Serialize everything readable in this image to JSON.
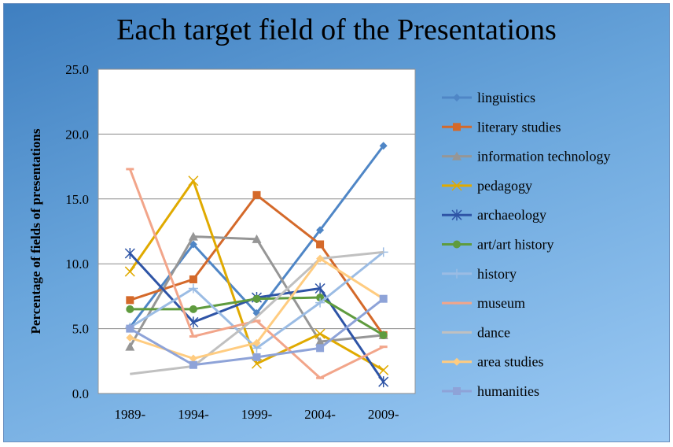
{
  "chart_data": {
    "type": "line",
    "title": "Each target field of the Presentations",
    "xlabel": "",
    "ylabel": "Percentage of fields of presentations",
    "categories": [
      "1989-",
      "1994-",
      "1999-",
      "2004-",
      "2009-"
    ],
    "ylim": [
      0,
      25
    ],
    "yticks": [
      "0.0",
      "5.0",
      "10.0",
      "15.0",
      "20.0",
      "25.0"
    ],
    "grid": true,
    "legend": "right",
    "series": [
      {
        "name": "linguistics",
        "color": "#4f86c6",
        "marker": "diamond",
        "values": [
          5.1,
          11.5,
          6.2,
          12.6,
          19.1
        ]
      },
      {
        "name": "literary studies",
        "color": "#d4692a",
        "marker": "square",
        "values": [
          7.2,
          8.8,
          15.3,
          11.5,
          4.5
        ]
      },
      {
        "name": "information technology",
        "color": "#969696",
        "marker": "triangle",
        "values": [
          3.6,
          12.1,
          11.9,
          4.0,
          4.5
        ]
      },
      {
        "name": "pedagogy",
        "color": "#e0aa00",
        "marker": "x",
        "values": [
          9.4,
          16.4,
          2.3,
          4.6,
          1.8
        ]
      },
      {
        "name": "archaeology",
        "color": "#2e54a6",
        "marker": "star",
        "values": [
          10.8,
          5.5,
          7.4,
          8.1,
          0.9
        ]
      },
      {
        "name": "art/art history",
        "color": "#5f9b3e",
        "marker": "circle",
        "values": [
          6.5,
          6.5,
          7.3,
          7.4,
          4.5
        ]
      },
      {
        "name": "history",
        "color": "#9bbce4",
        "marker": "plus",
        "values": [
          5.1,
          8.1,
          3.5,
          7.0,
          10.9
        ]
      },
      {
        "name": "museum",
        "color": "#f2a58a",
        "marker": "dash",
        "values": [
          17.3,
          4.4,
          5.6,
          1.2,
          3.6
        ]
      },
      {
        "name": "dance",
        "color": "#c0c0c0",
        "marker": "none",
        "values": [
          1.5,
          2.1,
          5.9,
          10.4,
          10.9
        ]
      },
      {
        "name": "area studies",
        "color": "#ffcc80",
        "marker": "diamond",
        "values": [
          4.3,
          2.7,
          3.9,
          10.4,
          7.3
        ]
      },
      {
        "name": "humanities",
        "color": "#8ea3d8",
        "marker": "square",
        "values": [
          5.0,
          2.2,
          2.8,
          3.5,
          7.3
        ]
      }
    ]
  }
}
